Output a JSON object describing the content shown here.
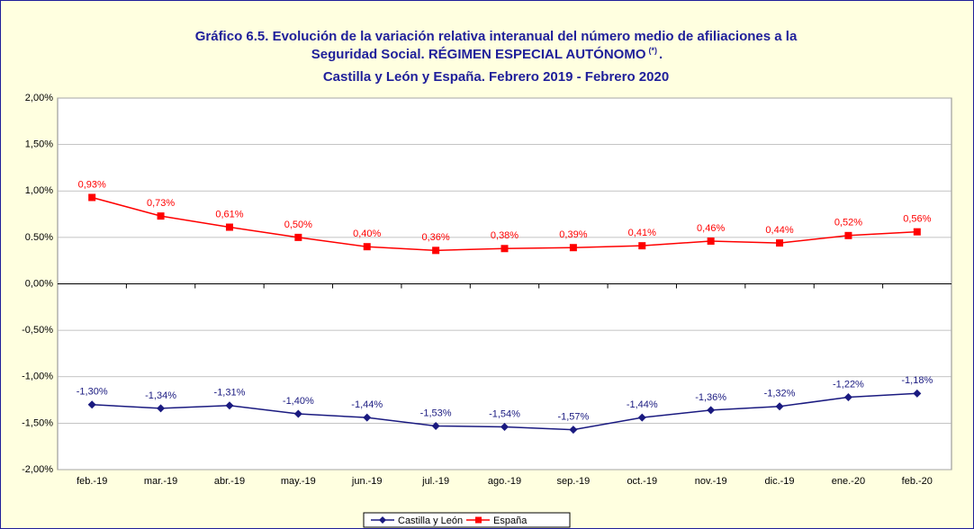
{
  "chart_data": {
    "type": "line",
    "title": "Gráfico 6.5. Evolución de la variación relativa interanual del número medio de  afiliaciones a la",
    "title_line2": "Seguridad Social. RÉGIMEN ESPECIAL AUTÓNOMO",
    "title_note": "(*)",
    "title_line2_end": ".",
    "subtitle": "Castilla y León y España. Febrero 2019 - Febrero 2020",
    "categories": [
      "feb.-19",
      "mar.-19",
      "abr.-19",
      "may.-19",
      "jun.-19",
      "jul.-19",
      "ago.-19",
      "sep.-19",
      "oct.-19",
      "nov.-19",
      "dic.-19",
      "ene.-20",
      "feb.-20"
    ],
    "series": [
      {
        "name": "Castilla y León",
        "color": "#1a1a80",
        "values": [
          -1.3,
          -1.34,
          -1.31,
          -1.4,
          -1.44,
          -1.53,
          -1.54,
          -1.57,
          -1.44,
          -1.36,
          -1.32,
          -1.22,
          -1.18
        ],
        "value_labels": [
          "-1,30%",
          "-1,34%",
          "-1,31%",
          "-1,40%",
          "-1,44%",
          "-1,53%",
          "-1,54%",
          "-1,57%",
          "-1,44%",
          "-1,36%",
          "-1,32%",
          "-1,22%",
          "-1,18%"
        ]
      },
      {
        "name": "España",
        "color": "#ff0000",
        "values": [
          0.93,
          0.73,
          0.61,
          0.5,
          0.4,
          0.36,
          0.38,
          0.39,
          0.41,
          0.46,
          0.44,
          0.52,
          0.56
        ],
        "value_labels": [
          "0,93%",
          "0,73%",
          "0,61%",
          "0,50%",
          "0,40%",
          "0,36%",
          "0,38%",
          "0,39%",
          "0,41%",
          "0,46%",
          "0,44%",
          "0,52%",
          "0,56%"
        ]
      }
    ],
    "ylim": [
      -2,
      2
    ],
    "yticks": [
      {
        "value": -2,
        "label": "-2,00%"
      },
      {
        "value": -1.5,
        "label": "-1,50%"
      },
      {
        "value": -1,
        "label": "-1,00%"
      },
      {
        "value": -0.5,
        "label": "-0,50%"
      },
      {
        "value": 0,
        "label": "0,00%"
      },
      {
        "value": 0.5,
        "label": "0.50%"
      },
      {
        "value": 1,
        "label": "1,00%"
      },
      {
        "value": 1.5,
        "label": "1,50%"
      },
      {
        "value": 2,
        "label": "2,00%"
      }
    ],
    "grid": true,
    "legend": "bottom"
  }
}
